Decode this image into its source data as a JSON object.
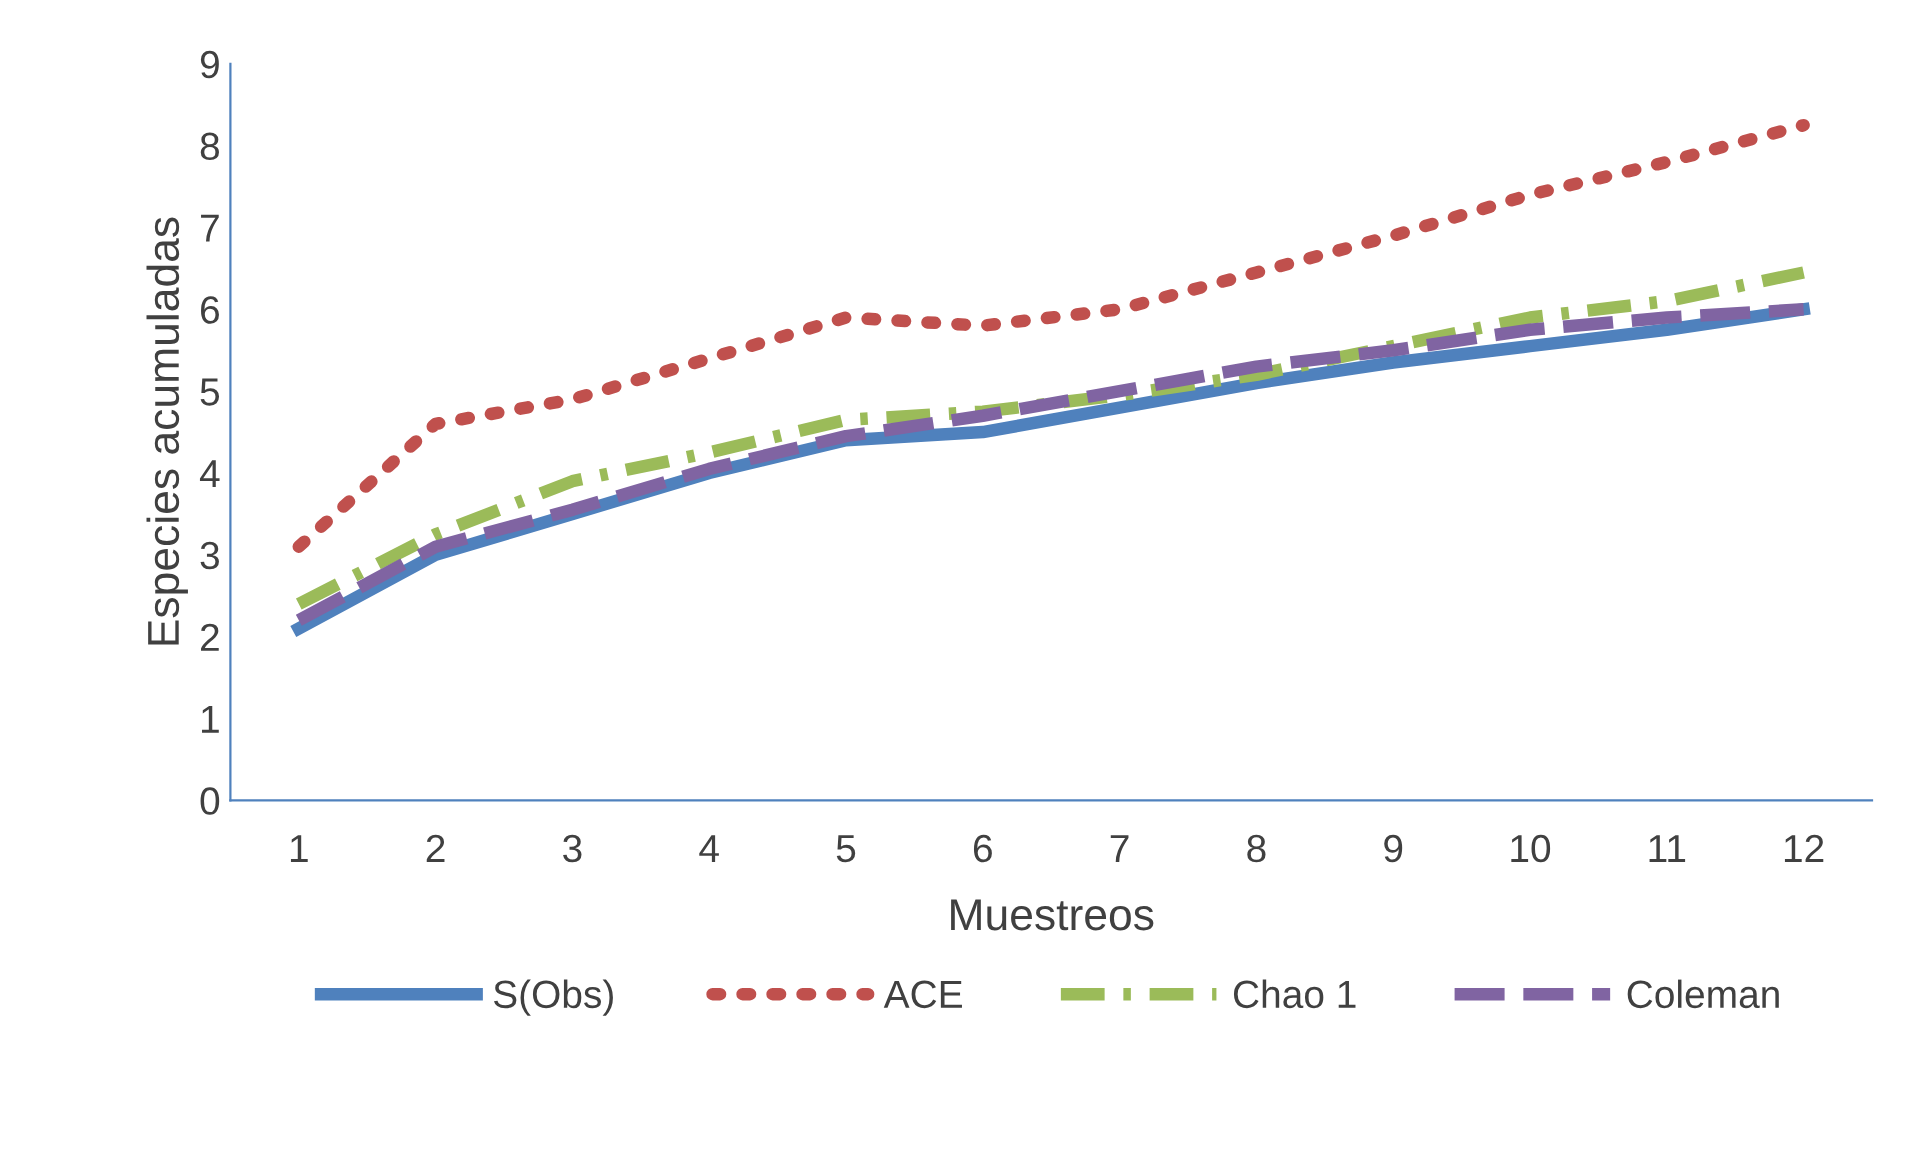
{
  "chart_data": {
    "type": "line",
    "xlabel": "Muestreos",
    "ylabel": "Especies acumuladas",
    "categories": [
      "1",
      "2",
      "3",
      "4",
      "5",
      "6",
      "7",
      "8",
      "9",
      "10",
      "11",
      "12"
    ],
    "series": [
      {
        "name": "S(Obs)",
        "color": "#4f81bd",
        "line_style": "solid",
        "values": [
          2.1,
          3.0,
          3.5,
          4.0,
          4.4,
          4.5,
          4.8,
          5.1,
          5.35,
          5.55,
          5.75,
          6.0
        ]
      },
      {
        "name": "ACE",
        "color": "#c0504d",
        "line_style": "dotted",
        "values": [
          3.1,
          4.6,
          4.9,
          5.4,
          5.9,
          5.8,
          6.0,
          6.45,
          6.9,
          7.4,
          7.8,
          8.25
        ]
      },
      {
        "name": "Chao 1",
        "color": "#9bbb59",
        "line_style": "dashdot",
        "values": [
          2.4,
          3.25,
          3.9,
          4.25,
          4.65,
          4.75,
          4.95,
          5.2,
          5.55,
          5.9,
          6.1,
          6.45
        ]
      },
      {
        "name": "Coleman",
        "color": "#8064a2",
        "line_style": "dashed",
        "values": [
          2.2,
          3.1,
          3.55,
          4.05,
          4.45,
          4.7,
          5.0,
          5.3,
          5.5,
          5.75,
          5.9,
          6.0
        ]
      }
    ],
    "ylim": [
      0,
      9
    ],
    "yticks": [
      0,
      1,
      2,
      3,
      4,
      5,
      6,
      7,
      8,
      9
    ],
    "grid": false,
    "legend": "bottom",
    "marker": "none"
  }
}
